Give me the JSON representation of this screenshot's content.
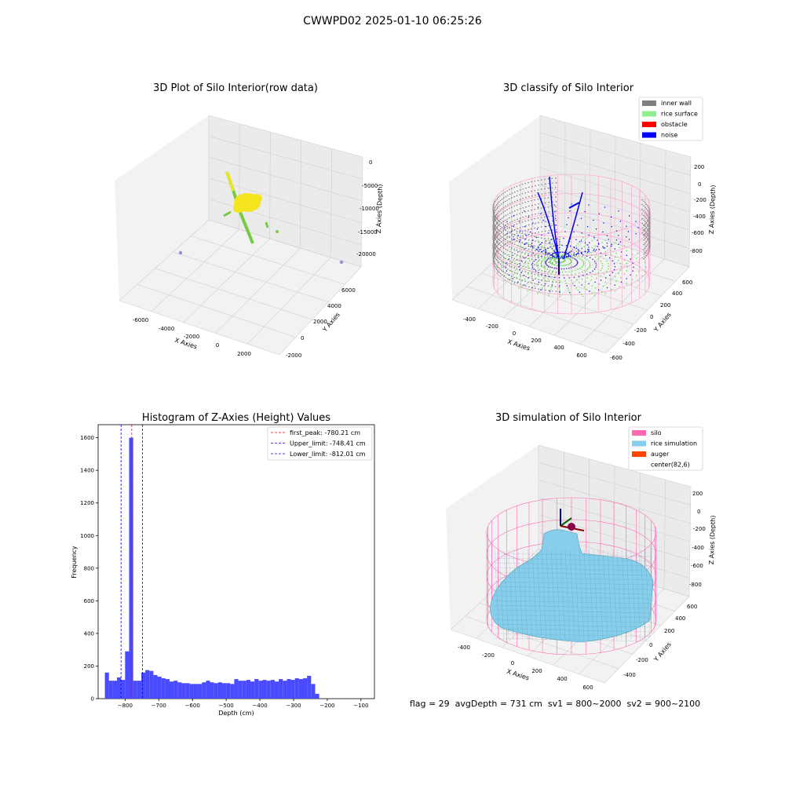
{
  "figure": {
    "suptitle": "CWWPD02 2025-01-10 06:25:26"
  },
  "panel_raw": {
    "title": "3D Plot of Silo Interior(row data)",
    "xlabel": "X Axies",
    "ylabel": "Y Axies",
    "zlabel": "Z Axies (Depth)",
    "xticks": [
      "-6000",
      "-4000",
      "-2000",
      "0",
      "2000"
    ],
    "yticks": [
      "-2000",
      "0",
      "2000",
      "4000",
      "6000"
    ],
    "zticks": [
      "0",
      "-5000",
      "-10000",
      "-15000",
      "-20000"
    ]
  },
  "panel_classify": {
    "title": "3D classify of Silo Interior",
    "xlabel": "X Axies",
    "ylabel": "Y Axies",
    "zlabel": "Z Axies (Depth)",
    "xticks": [
      "-400",
      "-200",
      "0",
      "200",
      "400",
      "600"
    ],
    "yticks": [
      "-600",
      "-400",
      "-200",
      "0",
      "200",
      "400",
      "600"
    ],
    "zticks": [
      "200",
      "0",
      "-200",
      "-400",
      "-600",
      "-800"
    ],
    "legend": [
      {
        "label": "inner wall",
        "color": "#808080"
      },
      {
        "label": "rice surface",
        "color": "#90ee90"
      },
      {
        "label": "obstacle",
        "color": "#ff0000"
      },
      {
        "label": "noise",
        "color": "#0000ff"
      }
    ]
  },
  "panel_hist": {
    "title": "Histogram of Z-Axies (Height) Values",
    "xlabel": "Depth (cm)",
    "ylabel": "Frequency",
    "bar_color": "#4a4aff",
    "legend": [
      {
        "label": "first_peak: -780.21 cm",
        "color": "#ff0000"
      },
      {
        "label": "Upper_limit: -748.41 cm",
        "color": "#0000ff"
      },
      {
        "label": "Lower_limit: -812.01 cm",
        "color": "#0000ff"
      }
    ]
  },
  "panel_sim": {
    "title": "3D simulation of Silo Interior",
    "xlabel": "X Axies",
    "ylabel": "Y Axies",
    "zlabel": "Z Axies (Depth)",
    "xticks": [
      "-400",
      "-200",
      "0",
      "200",
      "400",
      "600"
    ],
    "yticks": [
      "-400",
      "-200",
      "0",
      "200",
      "400",
      "600"
    ],
    "zticks": [
      "200",
      "0",
      "-200",
      "-400",
      "-600",
      "-800"
    ],
    "legend": [
      {
        "label": "silo",
        "color": "#ff69b4"
      },
      {
        "label": "rice simulation",
        "color": "#87ceeb"
      },
      {
        "label": "auger",
        "color": "#ff4500"
      },
      {
        "label": "center(82,6)",
        "color": ""
      }
    ]
  },
  "footer": {
    "text": "flag = 29  avgDepth = 731 cm  sv1 = 800~2000  sv2 = 900~2100"
  },
  "chart_data": [
    {
      "type": "scatter",
      "title": "3D Plot of Silo Interior(row data)",
      "xlabel": "X Axies",
      "ylabel": "Y Axies",
      "zlabel": "Z Axies (Depth)",
      "xlim": [
        -7000,
        3000
      ],
      "ylim": [
        -2000,
        7000
      ],
      "zlim": [
        -22000,
        0
      ],
      "grid": true
    },
    {
      "type": "scatter",
      "title": "3D classify of Silo Interior",
      "xlabel": "X Axies",
      "ylabel": "Y Axies",
      "zlabel": "Z Axies (Depth)",
      "xlim": [
        -500,
        700
      ],
      "ylim": [
        -600,
        700
      ],
      "zlim": [
        -900,
        300
      ],
      "series": [
        {
          "name": "inner wall"
        },
        {
          "name": "rice surface"
        },
        {
          "name": "obstacle"
        },
        {
          "name": "noise"
        }
      ],
      "legend_position": "top-right",
      "grid": true
    },
    {
      "type": "bar",
      "title": "Histogram of Z-Axies (Height) Values",
      "xlabel": "Depth (cm)",
      "ylabel": "Frequency",
      "xlim": [
        -880,
        -60
      ],
      "ylim": [
        0,
        1680
      ],
      "xticks": [
        -800,
        -700,
        -600,
        -500,
        -400,
        -300,
        -200,
        -100
      ],
      "yticks": [
        0,
        200,
        400,
        600,
        800,
        1000,
        1200,
        1400,
        1600
      ],
      "bin_start": -860,
      "bin_width": 12,
      "counts": [
        160,
        110,
        110,
        130,
        115,
        290,
        1600,
        110,
        110,
        160,
        175,
        170,
        145,
        135,
        125,
        120,
        105,
        110,
        100,
        95,
        95,
        90,
        90,
        90,
        100,
        110,
        100,
        95,
        100,
        95,
        95,
        90,
        120,
        110,
        110,
        115,
        105,
        120,
        110,
        115,
        110,
        115,
        105,
        120,
        110,
        120,
        115,
        125,
        120,
        125,
        140,
        90,
        30
      ],
      "vlines": [
        {
          "name": "first_peak: -780.21 cm",
          "x": -780.21,
          "color": "#ff0000"
        },
        {
          "name": "Upper_limit: -748.41 cm",
          "x": -748.41,
          "color": "#0000ff"
        },
        {
          "name": "Lower_limit: -812.01 cm",
          "x": -812.01,
          "color": "#0000ff"
        }
      ],
      "legend_position": "top-right"
    },
    {
      "type": "area",
      "title": "3D simulation of Silo Interior",
      "xlabel": "X Axies",
      "ylabel": "Y Axies",
      "zlabel": "Z Axies (Depth)",
      "xlim": [
        -500,
        700
      ],
      "ylim": [
        -500,
        700
      ],
      "zlim": [
        -900,
        300
      ],
      "series": [
        {
          "name": "silo"
        },
        {
          "name": "rice simulation"
        },
        {
          "name": "auger"
        },
        {
          "name": "center(82,6)"
        }
      ],
      "legend_position": "top-right",
      "grid": true
    }
  ]
}
